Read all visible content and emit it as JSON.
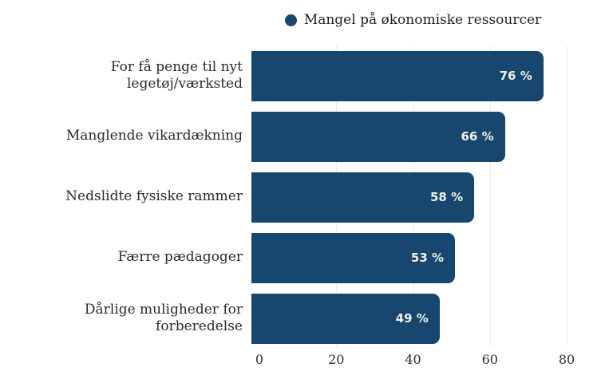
{
  "chart_data": {
    "type": "bar",
    "orientation": "horizontal",
    "title": "",
    "legend": "Mangel på økonomiske ressourcer",
    "legend_position": "top-center",
    "categories": [
      "For få penge til nyt legetøj/værksted",
      "Manglende vikardækning",
      "Nedslidte fysiske rammer",
      "Færre pædagoger",
      "Dårlige muligheder for forberedelse"
    ],
    "values": [
      76,
      66,
      58,
      53,
      49
    ],
    "value_labels": [
      "76 %",
      "66 %",
      "58 %",
      "53 %",
      "49 %"
    ],
    "xlabel": "",
    "ylabel": "",
    "xlim": [
      0,
      80
    ],
    "x_ticks": [
      0,
      20,
      40,
      60,
      80
    ],
    "grid": true,
    "colors": {
      "bar": "#17466E",
      "value_text": "#F2F1EA",
      "label_text": "#2A2A2A",
      "gridline": "#ECECEC",
      "tick_text": "#2E2E2E",
      "background": "#FFFFFF"
    }
  }
}
